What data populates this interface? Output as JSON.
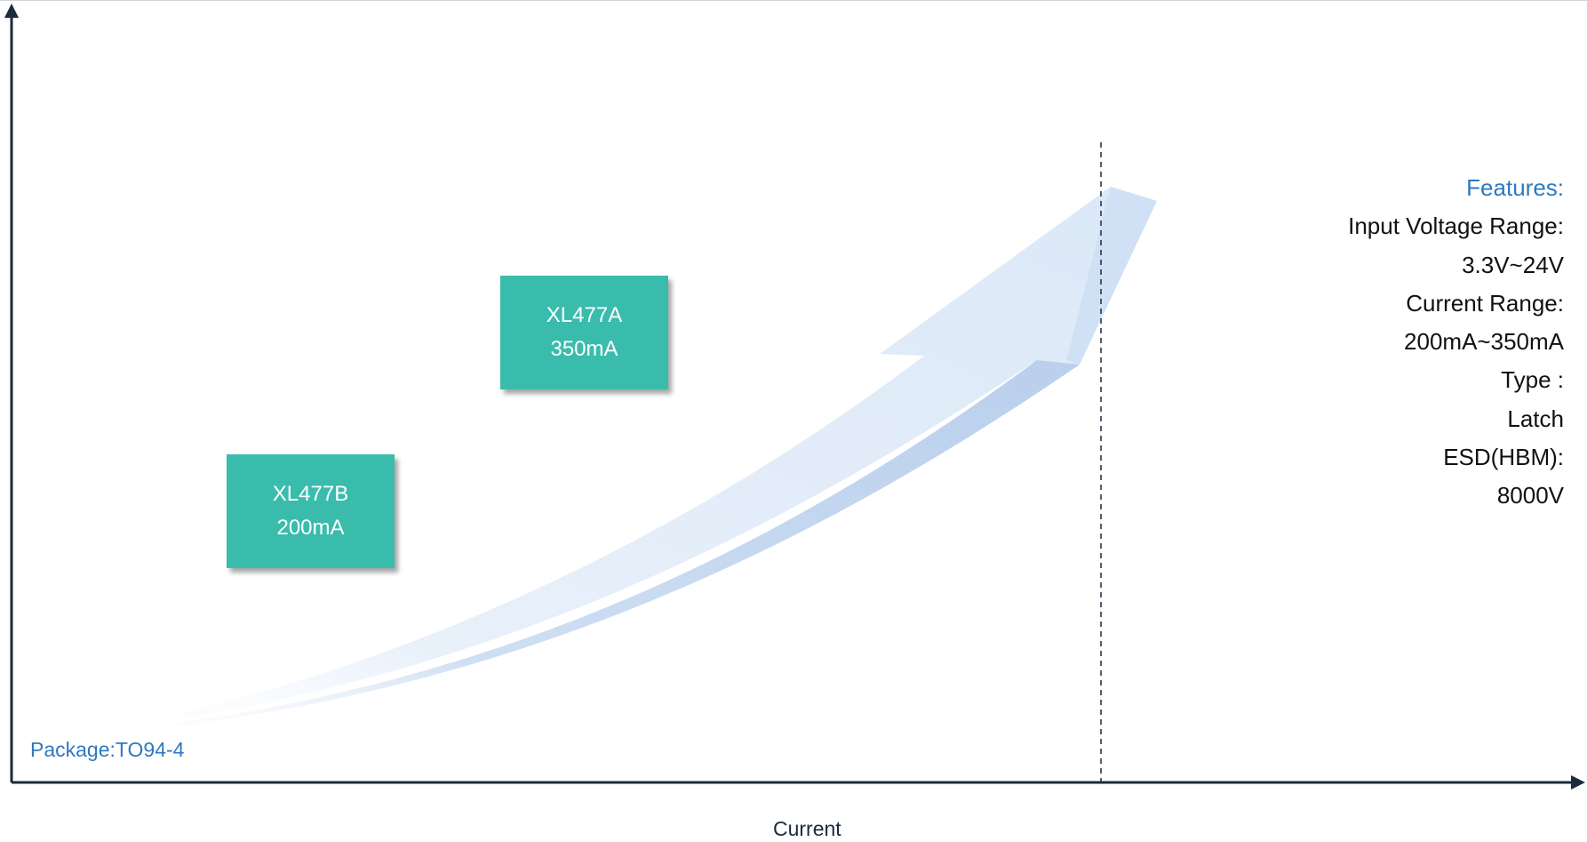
{
  "products": [
    {
      "name": "XL477A",
      "current": "350mA"
    },
    {
      "name": "XL477B",
      "current": "200mA"
    }
  ],
  "features": {
    "heading": "Features:",
    "lines": [
      "Input Voltage Range:",
      "3.3V~24V",
      "Current  Range:",
      "200mA~350mA",
      "Type :",
      "Latch",
      "ESD(HBM):",
      "8000V"
    ]
  },
  "package": "Package:TO94-4",
  "axis": {
    "xlabel": "Current"
  },
  "colors": {
    "axis": "#1b2a3d",
    "box": "#3abcad",
    "accent_text": "#2f79c0",
    "arrow_light": "#e3eefa",
    "arrow_dark": "#c5d7f0"
  }
}
